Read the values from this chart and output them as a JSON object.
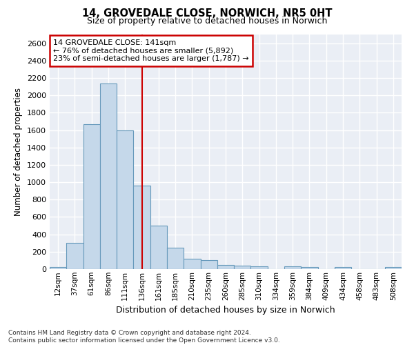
{
  "title": "14, GROVEDALE CLOSE, NORWICH, NR5 0HT",
  "subtitle": "Size of property relative to detached houses in Norwich",
  "xlabel": "Distribution of detached houses by size in Norwich",
  "ylabel": "Number of detached properties",
  "bar_color": "#c5d8ea",
  "bar_edge_color": "#6699bb",
  "categories": [
    "12sqm",
    "37sqm",
    "61sqm",
    "86sqm",
    "111sqm",
    "136sqm",
    "161sqm",
    "185sqm",
    "210sqm",
    "235sqm",
    "260sqm",
    "285sqm",
    "310sqm",
    "334sqm",
    "359sqm",
    "384sqm",
    "409sqm",
    "434sqm",
    "458sqm",
    "483sqm",
    "508sqm"
  ],
  "values": [
    20,
    300,
    1670,
    2140,
    1600,
    960,
    500,
    250,
    120,
    100,
    50,
    40,
    30,
    0,
    35,
    20,
    0,
    20,
    0,
    0,
    20
  ],
  "ylim": [
    0,
    2700
  ],
  "yticks": [
    0,
    200,
    400,
    600,
    800,
    1000,
    1200,
    1400,
    1600,
    1800,
    2000,
    2200,
    2400,
    2600
  ],
  "vline_x_index": 5,
  "annotation_text": "14 GROVEDALE CLOSE: 141sqm\n← 76% of detached houses are smaller (5,892)\n23% of semi-detached houses are larger (1,787) →",
  "annotation_box_color": "#ffffff",
  "annotation_box_edge_color": "#cc0000",
  "bg_color": "#eaeef5",
  "grid_color": "#ffffff",
  "vline_color": "#cc0000",
  "footnote": "Contains HM Land Registry data © Crown copyright and database right 2024.\nContains public sector information licensed under the Open Government Licence v3.0."
}
